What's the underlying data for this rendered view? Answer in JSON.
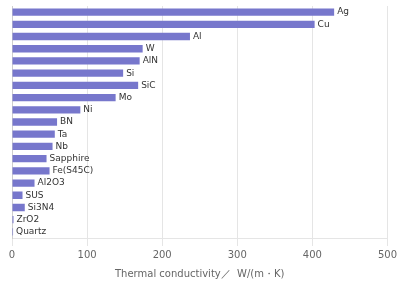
{
  "chart_data": {
    "type": "bar",
    "orientation": "horizontal",
    "categories": [
      "Quartz",
      "ZrO2",
      "Si3N4",
      "SUS",
      "Al2O3",
      "Fe(S45C)",
      "Sapphire",
      "Nb",
      "Ta",
      "BN",
      "Ni",
      "Mo",
      "SiC",
      "Si",
      "AlN",
      "W",
      "Al",
      "Cu",
      "Ag"
    ],
    "values": [
      1.4,
      2,
      17,
      14,
      30,
      50,
      46,
      54,
      57,
      60,
      91,
      138,
      168,
      148,
      170,
      174,
      237,
      403,
      429
    ],
    "color": "#7777cc",
    "xlabel": "Thermal conductivity／  W/(m・K)",
    "xlim": [
      0,
      500
    ],
    "xticks": [
      0,
      100,
      200,
      300,
      400,
      500
    ],
    "grid": true,
    "tick_labels": "x"
  }
}
